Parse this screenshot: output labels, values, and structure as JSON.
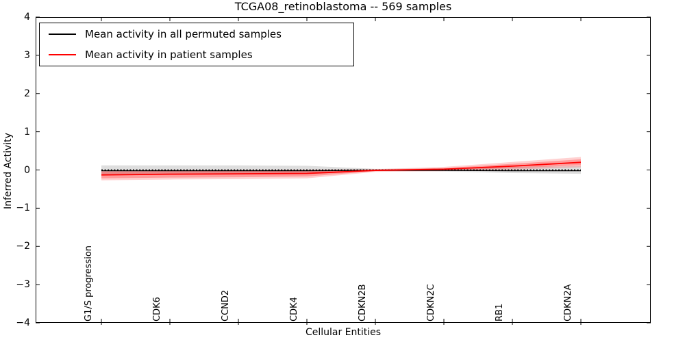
{
  "title": "TCGA08_retinoblastoma -- 569 samples",
  "legend": {
    "items": [
      {
        "label": "Mean activity in all permuted samples",
        "color": "#000000"
      },
      {
        "label": "Mean activity in patient samples",
        "color": "#ff0000"
      }
    ]
  },
  "axes": {
    "xlabel": "Cellular Entities",
    "ylabel": "Inferred Activity",
    "ytick_labels": [
      "−4",
      "−3",
      "−2",
      "−1",
      "0",
      "1",
      "2",
      "3",
      "4"
    ]
  },
  "chart_data": {
    "type": "line",
    "title": "TCGA08_retinoblastoma -- 569 samples",
    "xlabel": "Cellular Entities",
    "ylabel": "Inferred Activity",
    "ylim": [
      -4,
      4
    ],
    "yticks": [
      -4,
      -3,
      -2,
      -1,
      0,
      1,
      2,
      3,
      4
    ],
    "grid": false,
    "legend_position": "upper left",
    "categories": [
      "G1/S progression",
      "CDK6",
      "CCND2",
      "CDK4",
      "CDKN2B",
      "CDKN2C",
      "RB1",
      "CDKN2A"
    ],
    "series": [
      {
        "name": "Mean activity in all permuted samples",
        "color": "#000000",
        "style": "solid",
        "width": 1.3,
        "values": [
          -0.02,
          -0.02,
          -0.02,
          -0.02,
          -0.01,
          -0.01,
          -0.02,
          -0.02
        ]
      },
      {
        "name": "Permuted mean zero reference (dashed)",
        "color": "#000000",
        "style": "dashed",
        "width": 1.8,
        "values": [
          0,
          0,
          0,
          0,
          0,
          0,
          0,
          0
        ]
      },
      {
        "name": "Mean activity in patient samples",
        "color": "#ff0000",
        "style": "solid",
        "width": 1.8,
        "values": [
          -0.13,
          -0.11,
          -0.1,
          -0.09,
          -0.01,
          0.02,
          0.1,
          0.2
        ]
      }
    ],
    "bands": [
      {
        "name": "permuted-samples-range",
        "color": "#000000",
        "opacity": 0.13,
        "upper": [
          0.12,
          0.12,
          0.12,
          0.11,
          0.03,
          0.04,
          0.08,
          0.1
        ],
        "lower": [
          -0.12,
          -0.12,
          -0.12,
          -0.11,
          -0.03,
          -0.04,
          -0.08,
          -0.1
        ]
      },
      {
        "name": "patient-samples-range-outer",
        "color": "#ff0000",
        "opacity": 0.18,
        "upper": [
          -0.01,
          0.0,
          0.0,
          0.01,
          0.02,
          0.08,
          0.21,
          0.34
        ],
        "lower": [
          -0.27,
          -0.25,
          -0.24,
          -0.22,
          -0.05,
          -0.03,
          0.01,
          0.07
        ]
      },
      {
        "name": "patient-samples-range-inner",
        "color": "#ff0000",
        "opacity": 0.25,
        "upper": [
          -0.04,
          -0.03,
          -0.03,
          -0.02,
          0.01,
          0.05,
          0.16,
          0.28
        ],
        "lower": [
          -0.22,
          -0.2,
          -0.19,
          -0.17,
          -0.03,
          -0.01,
          0.05,
          0.12
        ]
      }
    ]
  }
}
